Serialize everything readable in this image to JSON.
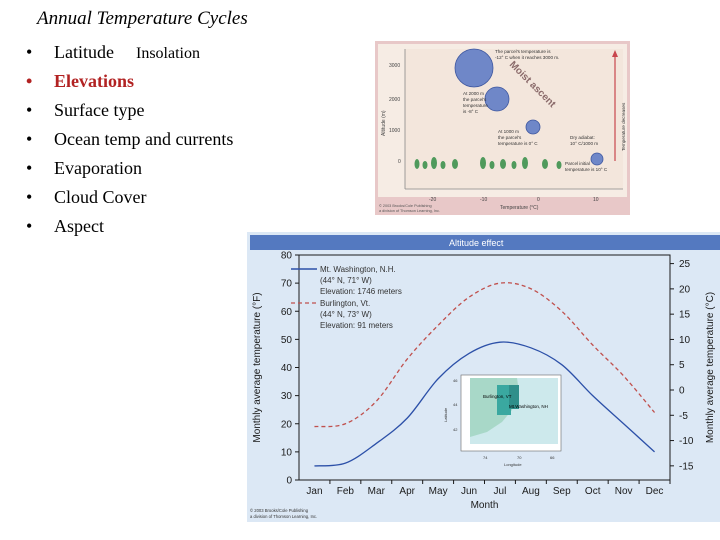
{
  "slide": {
    "title": "Annual Temperature Cycles",
    "bullets": [
      {
        "label": "Latitude",
        "sub": "Insolation",
        "highlight": false
      },
      {
        "label": "Elevations",
        "sub": "",
        "highlight": true
      },
      {
        "label": "Surface type",
        "sub": "",
        "highlight": false
      },
      {
        "label": "Ocean temp and currents",
        "sub": "",
        "highlight": false
      },
      {
        "label": "Evaporation",
        "sub": "",
        "highlight": false
      },
      {
        "label": "Cloud Cover",
        "sub": "",
        "highlight": false
      },
      {
        "label": "Aspect",
        "sub": "",
        "highlight": false
      }
    ],
    "bullet_char": "•"
  },
  "figure1": {
    "ylabel": "Altitude (m)",
    "xlabel": "Temperature (°C)",
    "yticks": [
      "3000",
      "2000",
      "1000",
      "0"
    ],
    "xticks": [
      "-20",
      "-10",
      "0",
      "10"
    ],
    "annot_top": [
      "The parcel's temperature is",
      "-12° C when it reaches 3000 m."
    ],
    "annot_mid": [
      "At 2000 m",
      "the parcel's",
      "temperature",
      "is -8° C"
    ],
    "annot_low": [
      "At 1000 m",
      "the parcel's",
      "temperature is 0° C"
    ],
    "annot_dry": [
      "Dry adiabat:",
      "10° C/1000 m"
    ],
    "annot_parcel": [
      "Parcel initial",
      "temperature is 10° C"
    ],
    "moist_label": "Moist ascent",
    "arrow_label": "Temperature decreases",
    "credit": [
      "© 2003 Brooks/Cole Publishing",
      "a division of Thomson Learning, Inc."
    ],
    "colors": {
      "bg": "#f6ece4",
      "frame": "#e8c8c8",
      "bubble": "#6f87c8",
      "tree": "#4f9a5c",
      "arrow": "#c8464e"
    }
  },
  "chart_data": {
    "type": "line",
    "title": "Altitude effect",
    "xlabel": "Month",
    "ylabel": "Monthly average temperature (°F)",
    "ylabel_right": "Monthly average temperature (°C)",
    "categories": [
      "Jan",
      "Feb",
      "Mar",
      "Apr",
      "May",
      "Jun",
      "Jul",
      "Aug",
      "Sep",
      "Oct",
      "Nov",
      "Dec"
    ],
    "ylim": [
      0,
      80
    ],
    "yticks": [
      0,
      10,
      20,
      30,
      40,
      50,
      60,
      70,
      80
    ],
    "ylim_right": [
      -17.8,
      26.7
    ],
    "yticks_right": [
      25,
      20,
      15,
      10,
      5,
      0,
      -5,
      -10,
      -15
    ],
    "series": [
      {
        "name": "Mt. Washington, N.H.",
        "legend_lines": [
          "Mt. Washington, N.H.",
          "(44° N, 71° W)",
          "Elevation: 1746 meters"
        ],
        "style": "solid",
        "color": "#2c50a8",
        "values": [
          5,
          6,
          13,
          22,
          36,
          45,
          49,
          47,
          41,
          30,
          20,
          10
        ]
      },
      {
        "name": "Burlington, Vt.",
        "legend_lines": [
          "Burlington, Vt.",
          "(44° N, 73° W)",
          "Elevation: 91 meters"
        ],
        "style": "dashed",
        "color": "#c0504d",
        "values": [
          19,
          20,
          28,
          43,
          55,
          65,
          70,
          68,
          60,
          48,
          37,
          24
        ]
      }
    ],
    "inset": {
      "labels": [
        "Burlington, VT",
        "Mt.Washington, NH"
      ],
      "lat_ticks": [
        "46",
        "44",
        "42"
      ],
      "lon_ticks": [
        "74",
        "70",
        "66"
      ],
      "lat_label": "Latitude",
      "lon_label": "Longitude"
    },
    "credit": [
      "© 2003 Brooks/Cole Publishing",
      "a division of Thomson Learning, Inc."
    ],
    "colors": {
      "bg": "#dce8f5",
      "header": "#5479c0",
      "axis": "#1a1a1a"
    }
  }
}
